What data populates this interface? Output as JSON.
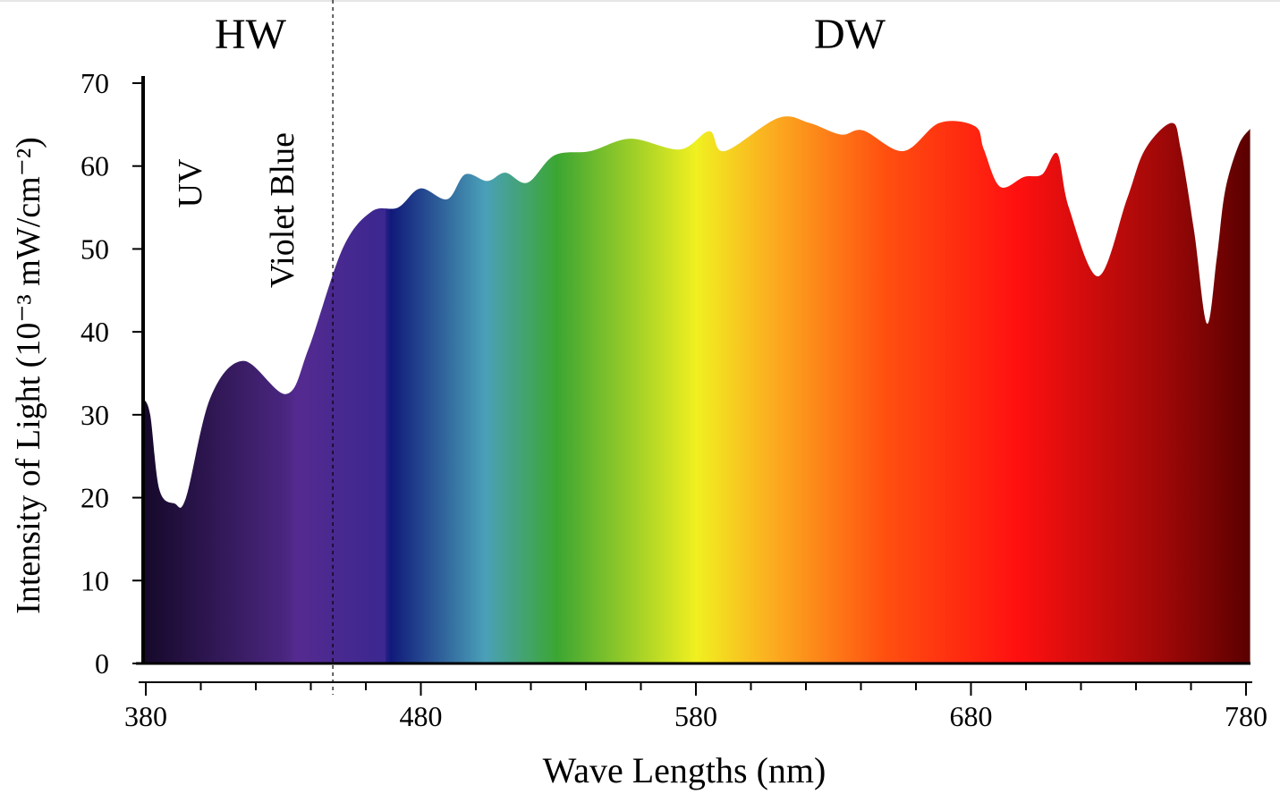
{
  "chart_data": {
    "type": "area",
    "title_left": "HW",
    "title_right": "DW",
    "xlabel": "Wave Lengths (nm)",
    "ylabel": "Intensity of Light (10⁻³ mW/cm⁻²)",
    "annotations": [
      "UV",
      "Violet Blue"
    ],
    "divider_x": 448,
    "x": [
      379,
      381.6,
      384.9,
      390.4,
      394.6,
      403.4,
      415.4,
      431.1,
      439.2,
      451.5,
      462,
      471.7,
      479.8,
      489.6,
      496.1,
      504.2,
      510.7,
      518.8,
      528.6,
      541.6,
      556.3,
      574.2,
      584.9,
      590.4,
      609.9,
      621.3,
      632.7,
      640.8,
      655.4,
      668.5,
      681.5,
      684.7,
      690.6,
      699.4,
      705.9,
      711.4,
      715.6,
      726.3,
      736.7,
      743.3,
      753,
      756.3,
      761.2,
      765.8,
      769.4,
      772.4,
      777.3,
      781.5
    ],
    "values": [
      32,
      30,
      21,
      19.3,
      20,
      32,
      36.5,
      32.5,
      38,
      50,
      54.5,
      55,
      57.3,
      56,
      59,
      58.2,
      59.2,
      58,
      61.3,
      61.8,
      63.3,
      62,
      64.2,
      61.8,
      65.8,
      65.2,
      63.8,
      64.3,
      61.8,
      65.2,
      64.8,
      62,
      57.5,
      58.7,
      59,
      61.5,
      55,
      46.7,
      56,
      62,
      65.2,
      62,
      52,
      41,
      49,
      57,
      62.5,
      64.5
    ],
    "xlim": [
      380,
      780
    ],
    "ylim": [
      0,
      70
    ],
    "xticks": [
      380,
      480,
      580,
      680,
      780
    ],
    "xticks_minor": [
      400,
      420,
      440,
      460,
      500,
      520,
      540,
      560,
      600,
      620,
      640,
      660,
      700,
      720,
      740,
      760
    ],
    "yticks": [
      0,
      10,
      20,
      30,
      40,
      50,
      60,
      70
    ]
  }
}
